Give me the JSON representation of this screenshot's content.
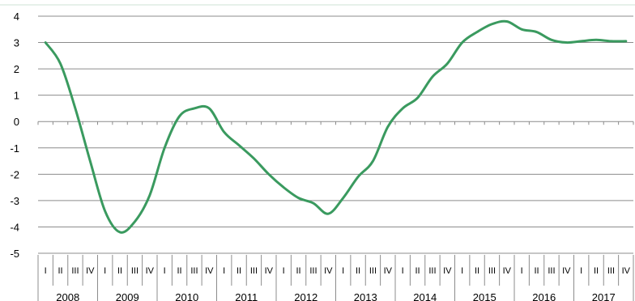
{
  "chart_data": {
    "type": "line",
    "title": "",
    "xlabel": "",
    "ylabel": "",
    "ylim": [
      -5,
      4
    ],
    "y_ticks": [
      4,
      3,
      2,
      1,
      0,
      -1,
      -2,
      -3,
      -4,
      -5
    ],
    "grid": "horizontal",
    "legend": "none",
    "quarters": [
      "I",
      "II",
      "III",
      "IV"
    ],
    "years": [
      "2008",
      "2009",
      "2010",
      "2011",
      "2012",
      "2013",
      "2014",
      "2015",
      "2016",
      "2017"
    ],
    "series": [
      {
        "color": "#3a9a5f",
        "values": [
          3.0,
          2.2,
          0.5,
          -1.5,
          -3.4,
          -4.2,
          -3.8,
          -2.8,
          -1.0,
          0.2,
          0.5,
          0.5,
          -0.4,
          -0.9,
          -1.4,
          -2.0,
          -2.5,
          -2.9,
          -3.1,
          -3.5,
          -2.9,
          -2.1,
          -1.5,
          -0.2,
          0.5,
          0.9,
          1.7,
          2.2,
          3.0,
          3.4,
          3.7,
          3.8,
          3.5,
          3.4,
          3.1,
          3.0,
          3.05,
          3.1,
          3.05,
          3.05
        ]
      }
    ]
  }
}
